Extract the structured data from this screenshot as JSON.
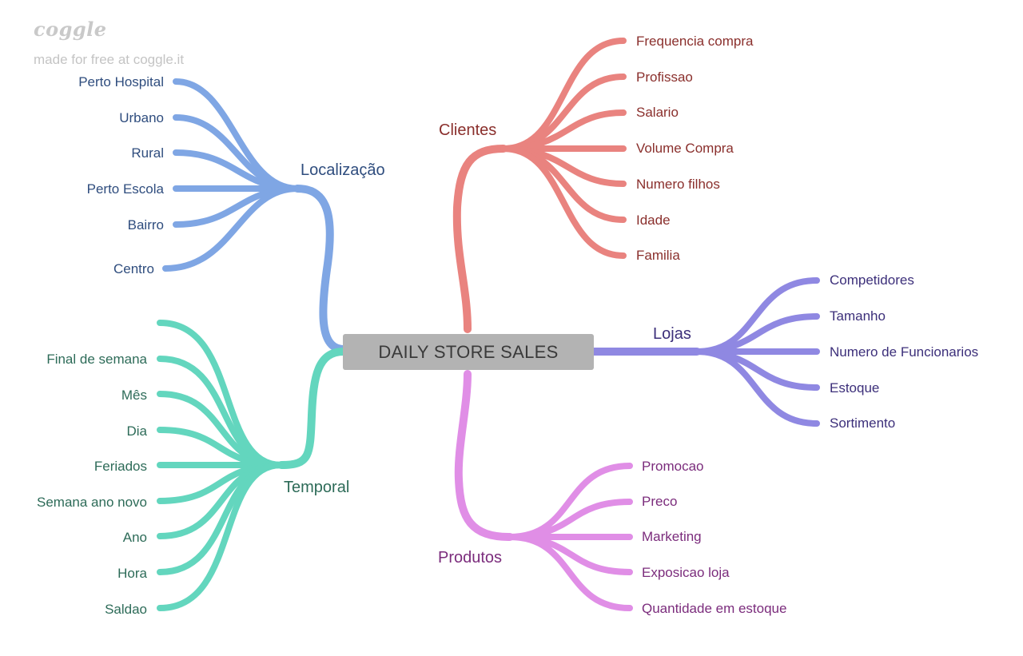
{
  "watermark": {
    "logo": "coggle",
    "tagline": "made for free at coggle.it"
  },
  "center": {
    "label": "DAILY STORE SALES"
  },
  "colors": {
    "localizacao": "#7fa6e4",
    "temporal": "#63d6be",
    "clientes": "#e9837f",
    "lojas": "#8f88e2",
    "produtos": "#e08ee6",
    "center_fill": "#b3b3b3"
  },
  "branches": {
    "localizacao": {
      "label": "Localização",
      "leaves": [
        "Perto Hospital",
        "Urbano",
        "Rural",
        "Perto Escola",
        "Bairro",
        "Centro"
      ]
    },
    "temporal": {
      "label": "Temporal",
      "leaves": [
        "",
        "Final de semana",
        "Mês",
        "Dia",
        "Feriados",
        "Semana ano novo",
        "Ano",
        "Hora",
        "Saldao"
      ]
    },
    "clientes": {
      "label": "Clientes",
      "leaves": [
        "Frequencia compra",
        "Profissao",
        "Salario",
        "Volume Compra",
        "Numero filhos",
        "Idade",
        "Familia"
      ]
    },
    "lojas": {
      "label": "Lojas",
      "leaves": [
        "Competidores",
        "Tamanho",
        "Numero de Funcionarios",
        "Estoque",
        "Sortimento"
      ]
    },
    "produtos": {
      "label": "Produtos",
      "leaves": [
        "Promocao",
        "Preco",
        "Marketing",
        "Exposicao loja",
        "Quantidade em estoque"
      ]
    }
  }
}
